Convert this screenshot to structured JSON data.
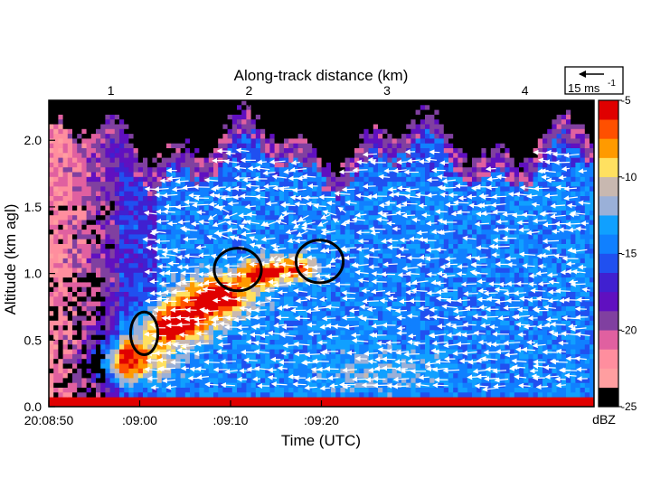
{
  "chart_data": {
    "type": "heatmap",
    "xlabel": "Time (UTC)",
    "ylabel": "Altitude (km agl)",
    "x2label": "Along-track distance (km)",
    "xlim": [
      0,
      60
    ],
    "ylim": [
      0,
      2.3
    ],
    "x2lim": [
      0.55,
      4.5
    ],
    "x_ticks": [
      {
        "value": 0,
        "label": "20:08:50"
      },
      {
        "value": 10,
        "label": ":09:00"
      },
      {
        "value": 20,
        "label": ":09:10"
      },
      {
        "value": 30,
        "label": ":09:20"
      }
    ],
    "y_ticks": [
      {
        "value": 0.0,
        "label": "0.0"
      },
      {
        "value": 0.5,
        "label": "0.5"
      },
      {
        "value": 1.0,
        "label": "1.0"
      },
      {
        "value": 1.5,
        "label": "1.5"
      },
      {
        "value": 2.0,
        "label": "2.0"
      }
    ],
    "x2_ticks": [
      {
        "value": 1,
        "label": "1"
      },
      {
        "value": 2,
        "label": "2"
      },
      {
        "value": 3,
        "label": "3"
      },
      {
        "value": 4,
        "label": "4"
      }
    ],
    "vector_key": {
      "label": "15 ms",
      "exponent": "-1"
    },
    "colorbar": {
      "unit": "dBZ",
      "range": [
        -25,
        -5
      ],
      "tick_labels": [
        {
          "value": -5,
          "label": "-5"
        },
        {
          "value": -10,
          "label": "-10"
        },
        {
          "value": -15,
          "label": "-15"
        },
        {
          "value": -20,
          "label": "-20"
        },
        {
          "value": -25,
          "label": "-25"
        }
      ],
      "colors": [
        "#000000",
        "#ff9ea0",
        "#ff8e9e",
        "#e060a0",
        "#8040a0",
        "#6010c0",
        "#4020d0",
        "#2050f0",
        "#1080ff",
        "#10a0ff",
        "#9ab0d8",
        "#c8b8b0",
        "#ffe060",
        "#ff9a00",
        "#ff5000",
        "#e00000"
      ]
    },
    "annotations": [
      {
        "shape": "ellipse",
        "x": 10.5,
        "y": 0.55,
        "rx": 1.5,
        "ry": 0.16
      },
      {
        "shape": "ellipse",
        "x": 20.8,
        "y": 1.03,
        "rx": 2.6,
        "ry": 0.16
      },
      {
        "shape": "ellipse",
        "x": 29.8,
        "y": 1.09,
        "rx": 2.6,
        "ry": 0.16
      }
    ]
  }
}
